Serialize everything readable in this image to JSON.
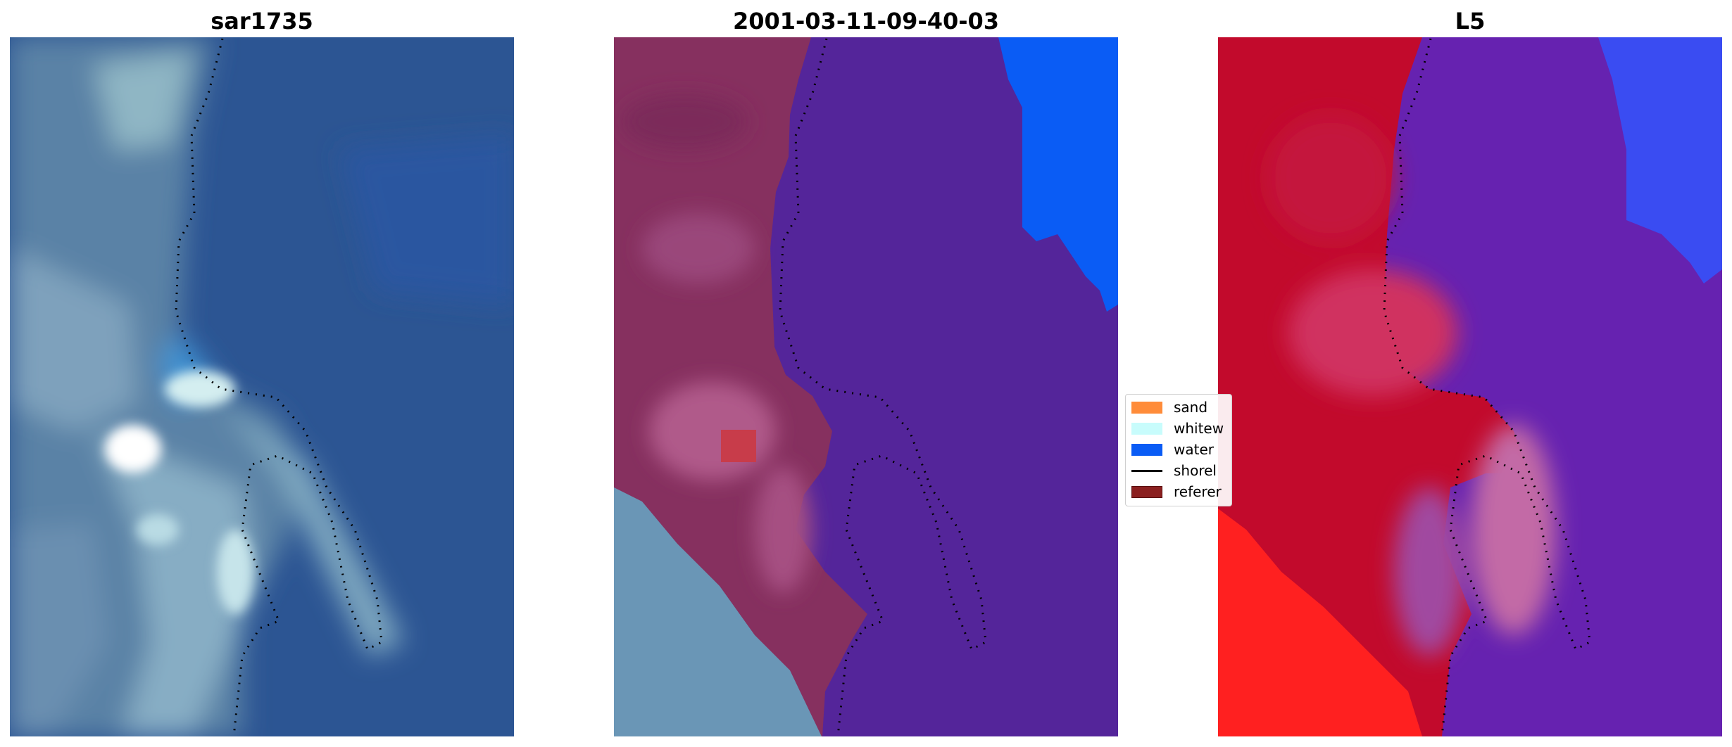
{
  "panels": [
    {
      "title": "sar1735"
    },
    {
      "title": "2001-03-11-09-40-03"
    },
    {
      "title": "L5"
    }
  ],
  "legend": {
    "items": [
      {
        "label": "sand",
        "color": "#ff8c3a",
        "kind": "patch"
      },
      {
        "label": "whitew",
        "color": "#c8fcfc",
        "kind": "patch"
      },
      {
        "label": "water",
        "color": "#0a5cf5",
        "kind": "patch"
      },
      {
        "label": "shorel",
        "color": "#000000",
        "kind": "line"
      },
      {
        "label": "referer",
        "color": "#8b2020",
        "kind": "patch"
      }
    ]
  },
  "colors": {
    "sea_blue": "#2c5593",
    "whitewater": "#c8fcfc",
    "land_overlay": "#8b2f62",
    "class_water_purple": "#54259a",
    "class_water_blue": "#0a5cf5",
    "reference_red": "#c83c4a",
    "l5_red": "#c20a2c",
    "l5_purple": "#6622b0",
    "l5_blue": "#2a3af0",
    "shoreline": "#000000"
  }
}
